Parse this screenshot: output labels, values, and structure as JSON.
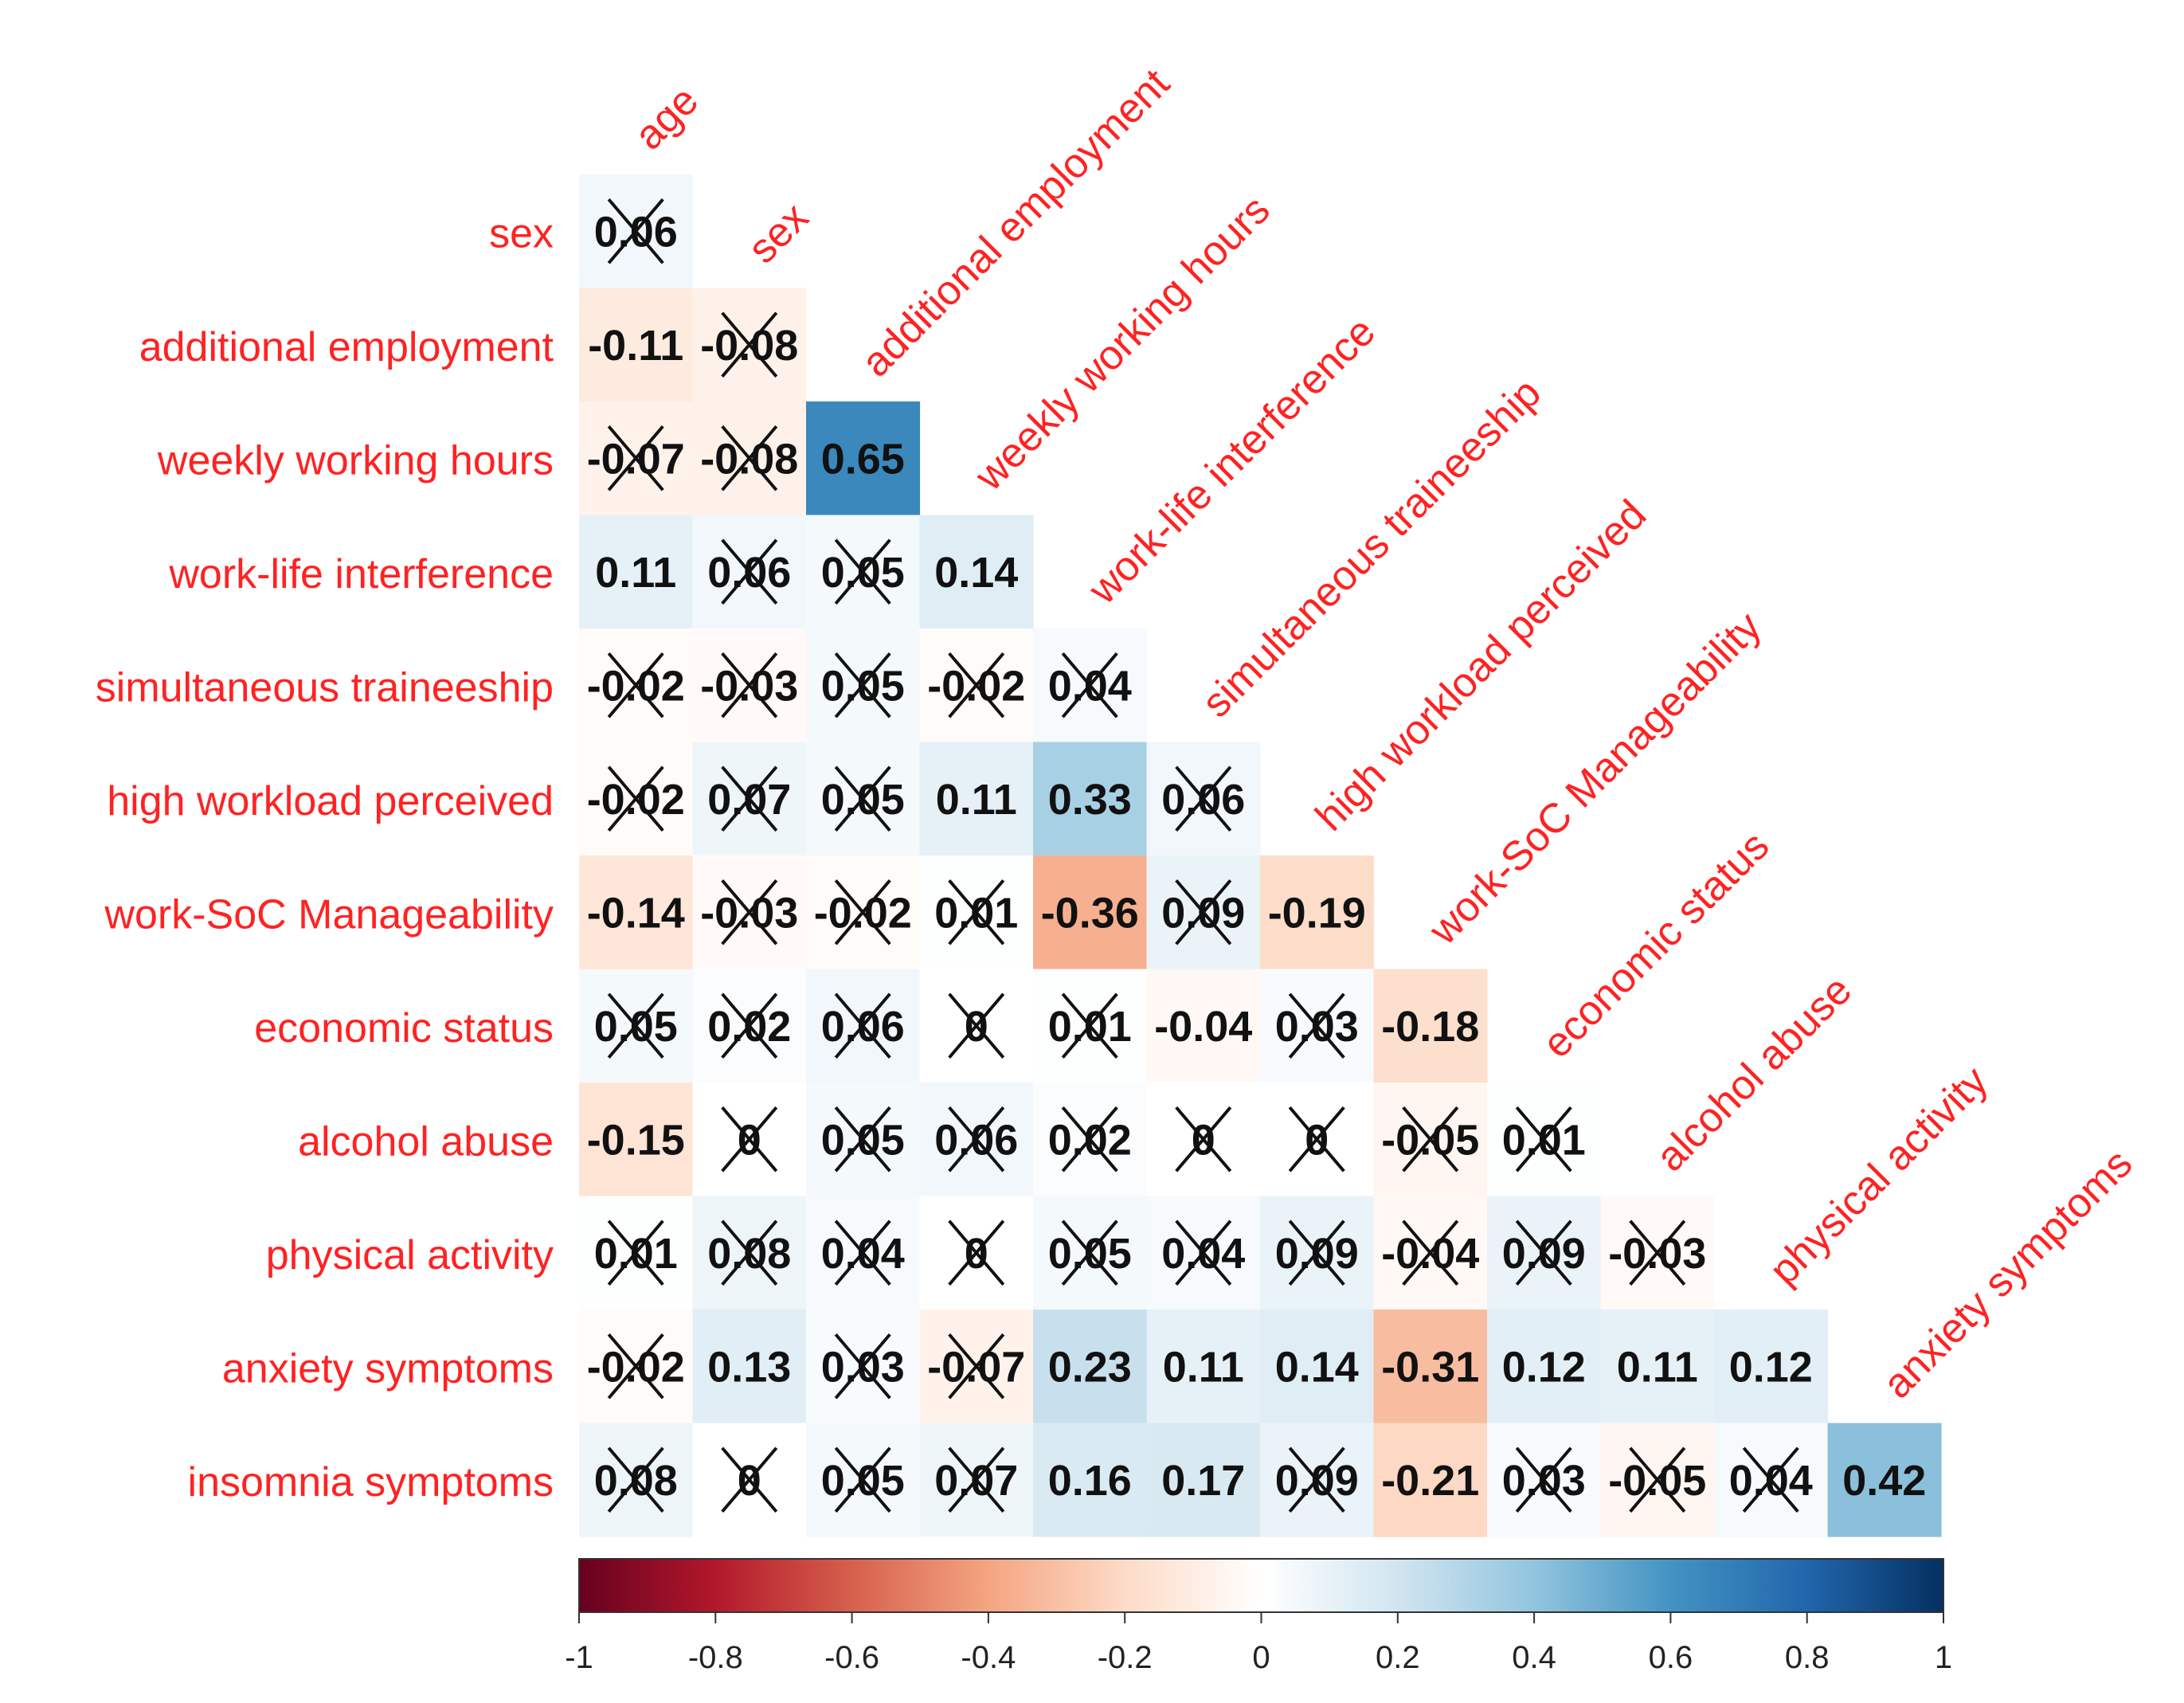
{
  "chart_data": {
    "type": "heatmap",
    "subtype": "lower-triangle correlation matrix",
    "row_labels": [
      "sex",
      "additional employment",
      "weekly working hours",
      "work-life interference",
      "simultaneous traineeship",
      "high workload perceived",
      "work-SoC Manageability",
      "economic status",
      "alcohol abuse",
      "physical activity",
      "anxiety symptoms",
      "insomnia symptoms"
    ],
    "column_labels": [
      "age",
      "sex",
      "additional employment",
      "weekly working hours",
      "work-life interference",
      "simultaneous traineeship",
      "high workload perceived",
      "work-SoC Manageability",
      "economic status",
      "alcohol abuse",
      "physical activity",
      "anxiety symptoms"
    ],
    "values": [
      [
        0.06
      ],
      [
        -0.11,
        -0.08
      ],
      [
        -0.07,
        -0.08,
        0.65
      ],
      [
        0.11,
        0.06,
        0.05,
        0.14
      ],
      [
        -0.02,
        -0.03,
        0.05,
        -0.02,
        0.04
      ],
      [
        -0.02,
        0.07,
        0.05,
        0.11,
        0.33,
        0.06
      ],
      [
        -0.14,
        -0.03,
        -0.02,
        0.01,
        -0.36,
        0.09,
        -0.19
      ],
      [
        0.05,
        0.02,
        0.06,
        0,
        0.01,
        -0.04,
        0.03,
        -0.18
      ],
      [
        -0.15,
        0,
        0.05,
        0.06,
        0.02,
        0,
        0,
        -0.05,
        0.01
      ],
      [
        0.01,
        0.08,
        0.04,
        0,
        0.05,
        0.04,
        0.09,
        -0.04,
        0.09,
        -0.03
      ],
      [
        -0.02,
        0.13,
        0.03,
        -0.07,
        0.23,
        0.11,
        0.14,
        -0.31,
        0.12,
        0.11,
        0.12
      ],
      [
        0.08,
        0,
        0.05,
        0.07,
        0.16,
        0.17,
        0.09,
        -0.21,
        0.03,
        -0.05,
        0.04,
        0.42
      ]
    ],
    "non_significant": [
      [
        true
      ],
      [
        false,
        true
      ],
      [
        true,
        true,
        false
      ],
      [
        false,
        true,
        true,
        false
      ],
      [
        true,
        true,
        true,
        true,
        true
      ],
      [
        true,
        true,
        true,
        false,
        false,
        true
      ],
      [
        false,
        true,
        true,
        true,
        false,
        true,
        false
      ],
      [
        true,
        true,
        true,
        true,
        true,
        false,
        true,
        false
      ],
      [
        false,
        true,
        true,
        true,
        true,
        true,
        true,
        true,
        true
      ],
      [
        true,
        true,
        true,
        true,
        true,
        true,
        true,
        true,
        true,
        true
      ],
      [
        true,
        false,
        true,
        true,
        false,
        false,
        false,
        false,
        false,
        false,
        false
      ],
      [
        true,
        true,
        true,
        true,
        false,
        false,
        true,
        false,
        true,
        true,
        true,
        false
      ]
    ],
    "colorbar": {
      "range": [
        -1,
        1
      ],
      "ticks": [
        "-1",
        "-0.8",
        "-0.6",
        "-0.4",
        "-0.2",
        "0",
        "0.2",
        "0.4",
        "0.6",
        "0.8",
        "1"
      ],
      "placement": "bottom"
    },
    "colors": {
      "label": "#ff2222",
      "value_text": "#111111",
      "scale": [
        "#67001F",
        "#B2182B",
        "#D6604D",
        "#F4A582",
        "#FDDBC7",
        "#FFFFFF",
        "#D1E5F0",
        "#92C5DE",
        "#4393C3",
        "#2166AC",
        "#053061"
      ]
    }
  }
}
